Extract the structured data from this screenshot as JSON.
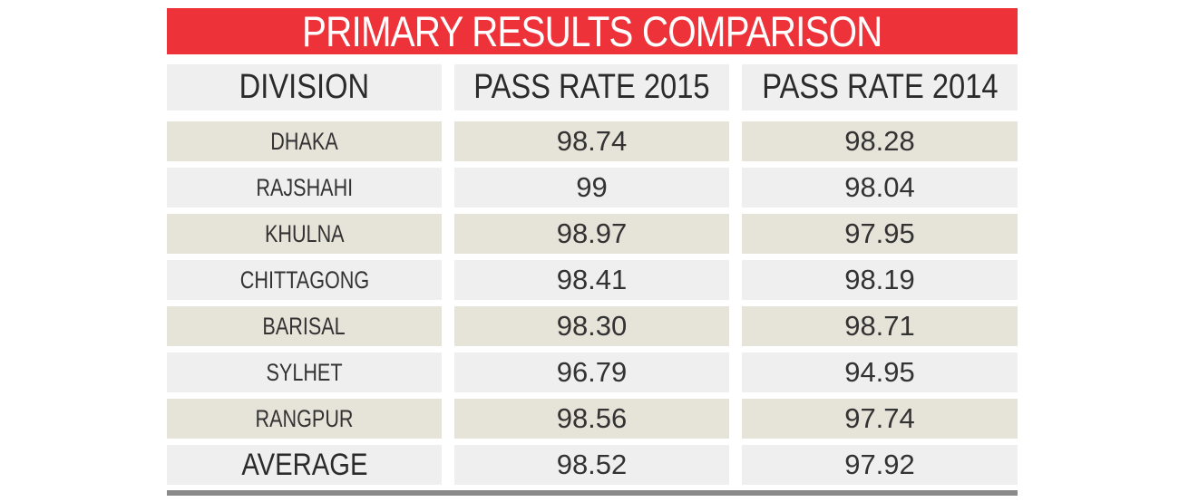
{
  "title": "PRIMARY RESULTS COMPARISON",
  "columns": [
    "DIVISION",
    "PASS RATE 2015",
    "PASS RATE 2014"
  ],
  "rows": [
    {
      "division": "DHAKA",
      "pr2015": "98.74",
      "pr2014": "98.28",
      "shade": "tan"
    },
    {
      "division": "RAJSHAHI",
      "pr2015": "99",
      "pr2014": "98.04",
      "shade": "light"
    },
    {
      "division": "KHULNA",
      "pr2015": "98.97",
      "pr2014": "97.95",
      "shade": "tan"
    },
    {
      "division": "CHITTAGONG",
      "pr2015": "98.41",
      "pr2014": "98.19",
      "shade": "light"
    },
    {
      "division": "BARISAL",
      "pr2015": "98.30",
      "pr2014": "98.71",
      "shade": "tan"
    },
    {
      "division": "SYLHET",
      "pr2015": "96.79",
      "pr2014": "94.95",
      "shade": "light"
    },
    {
      "division": "RANGPUR",
      "pr2015": "98.56",
      "pr2014": "97.74",
      "shade": "tan"
    }
  ],
  "average": {
    "label": "AVERAGE",
    "pr2015": "98.52",
    "pr2014": "97.92"
  },
  "colors": {
    "title_bg": "#ee3239",
    "row_tan": "#e6e3d9",
    "row_light": "#efefef",
    "bottom_rule": "#8a8a8a"
  },
  "chart_data": {
    "type": "table",
    "title": "PRIMARY RESULTS COMPARISON",
    "columns": [
      "DIVISION",
      "PASS RATE 2015",
      "PASS RATE 2014"
    ],
    "rows": [
      [
        "DHAKA",
        98.74,
        98.28
      ],
      [
        "RAJSHAHI",
        99,
        98.04
      ],
      [
        "KHULNA",
        98.97,
        97.95
      ],
      [
        "CHITTAGONG",
        98.41,
        98.19
      ],
      [
        "BARISAL",
        98.3,
        98.71
      ],
      [
        "SYLHET",
        96.79,
        94.95
      ],
      [
        "RANGPUR",
        98.56,
        97.74
      ],
      [
        "AVERAGE",
        98.52,
        97.92
      ]
    ]
  }
}
